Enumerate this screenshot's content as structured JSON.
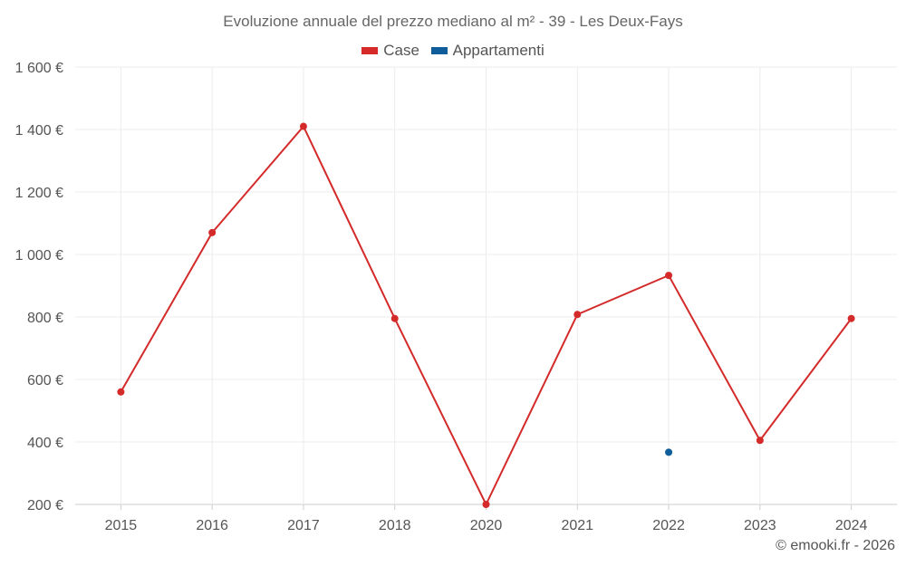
{
  "chart_data": {
    "type": "line",
    "title": "Evoluzione annuale del prezzo mediano al m² - 39 - Les Deux-Fays",
    "categories": [
      "2015",
      "2016",
      "2017",
      "2018",
      "2020",
      "2021",
      "2022",
      "2023",
      "2024"
    ],
    "series": [
      {
        "name": "Case",
        "color": "#d42a2a",
        "values": [
          560,
          1070,
          1410,
          795,
          200,
          808,
          933,
          405,
          795
        ]
      },
      {
        "name": "Appartamenti",
        "color": "#0f5d9a",
        "values": [
          null,
          null,
          null,
          null,
          null,
          null,
          367,
          null,
          null
        ]
      }
    ],
    "ylim": [
      200,
      1600
    ],
    "yticks": [
      200,
      400,
      600,
      800,
      1000,
      1200,
      1400,
      1600
    ],
    "ytick_labels": [
      "200 €",
      "400 €",
      "600 €",
      "800 €",
      "1 000 €",
      "1 200 €",
      "1 400 €",
      "1 600 €"
    ],
    "grid": true,
    "legend": "top-center"
  },
  "credit": "© emooki.fr - 2026"
}
